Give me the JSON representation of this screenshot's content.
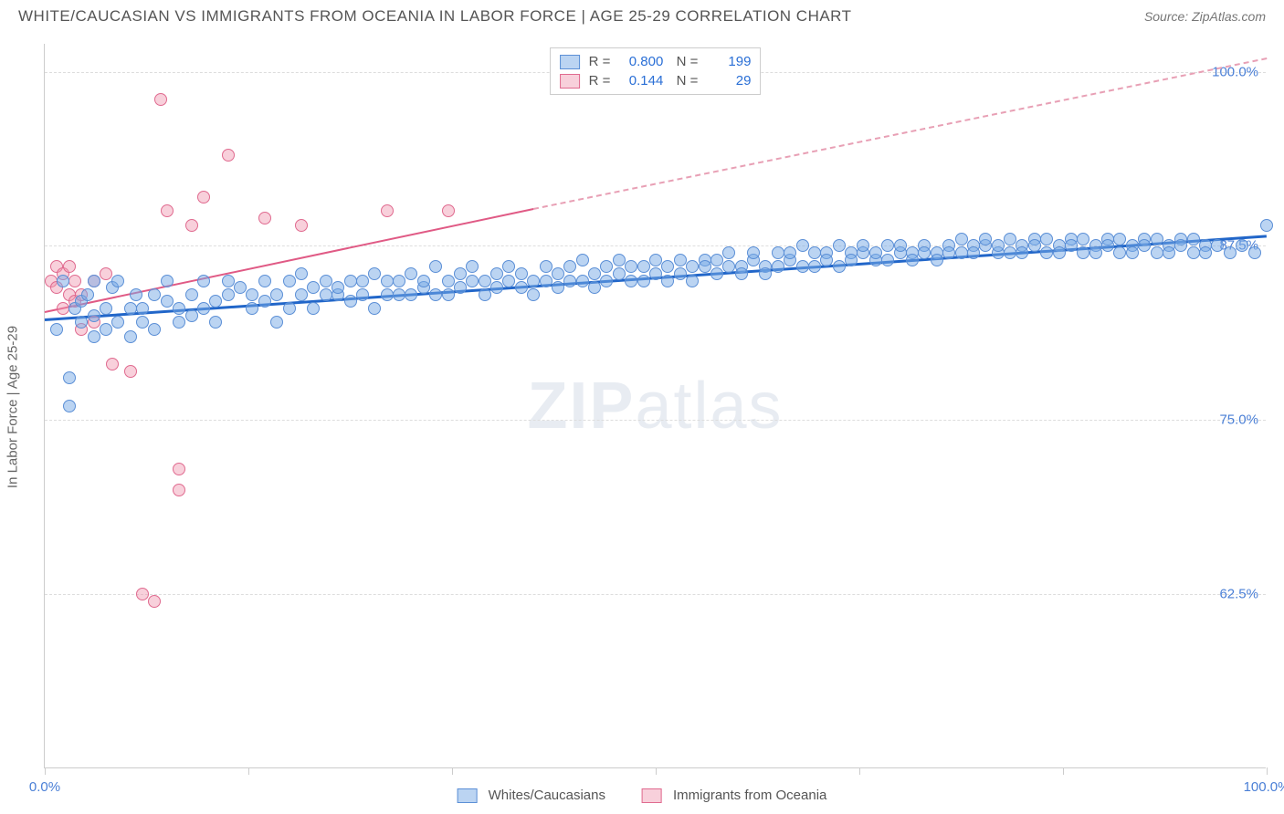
{
  "header": {
    "title": "WHITE/CAUCASIAN VS IMMIGRANTS FROM OCEANIA IN LABOR FORCE | AGE 25-29 CORRELATION CHART",
    "source": "Source: ZipAtlas.com"
  },
  "chart": {
    "type": "scatter",
    "ylabel": "In Labor Force | Age 25-29",
    "xlim": [
      0,
      100
    ],
    "ylim": [
      50,
      102
    ],
    "y_ticks": [
      62.5,
      75.0,
      87.5,
      100.0
    ],
    "y_tick_labels": [
      "62.5%",
      "75.0%",
      "87.5%",
      "100.0%"
    ],
    "x_ticks": [
      0,
      16.67,
      33.33,
      50,
      66.67,
      83.33,
      100
    ],
    "x_tick_labels_shown": {
      "0": "0.0%",
      "100": "100.0%"
    },
    "background_color": "#ffffff",
    "grid_color": "#dddddd",
    "series": {
      "blue": {
        "label": "Whites/Caucasians",
        "color_fill": "rgba(120,170,230,0.5)",
        "color_border": "#5b8fd6",
        "R": "0.800",
        "N": "199",
        "trend": {
          "x1": 0,
          "y1": 82.3,
          "x2": 100,
          "y2": 88.3,
          "color": "#2166c9",
          "width": 3
        },
        "points": [
          [
            1,
            81.5
          ],
          [
            1.5,
            85
          ],
          [
            2,
            78
          ],
          [
            2,
            76
          ],
          [
            2.5,
            83
          ],
          [
            3,
            83.5
          ],
          [
            3,
            82
          ],
          [
            3.5,
            84
          ],
          [
            4,
            82.5
          ],
          [
            4,
            81
          ],
          [
            4,
            85
          ],
          [
            5,
            83
          ],
          [
            5,
            81.5
          ],
          [
            5.5,
            84.5
          ],
          [
            6,
            82
          ],
          [
            6,
            85
          ],
          [
            7,
            83
          ],
          [
            7,
            81
          ],
          [
            7.5,
            84
          ],
          [
            8,
            83
          ],
          [
            8,
            82
          ],
          [
            9,
            84
          ],
          [
            9,
            81.5
          ],
          [
            10,
            83.5
          ],
          [
            10,
            85
          ],
          [
            11,
            83
          ],
          [
            11,
            82
          ],
          [
            12,
            84
          ],
          [
            12,
            82.5
          ],
          [
            13,
            83
          ],
          [
            13,
            85
          ],
          [
            14,
            83.5
          ],
          [
            14,
            82
          ],
          [
            15,
            84
          ],
          [
            15,
            85
          ],
          [
            16,
            84.5
          ],
          [
            17,
            83
          ],
          [
            17,
            84
          ],
          [
            18,
            85
          ],
          [
            18,
            83.5
          ],
          [
            19,
            84
          ],
          [
            19,
            82
          ],
          [
            20,
            85
          ],
          [
            20,
            83
          ],
          [
            21,
            84
          ],
          [
            21,
            85.5
          ],
          [
            22,
            84.5
          ],
          [
            22,
            83
          ],
          [
            23,
            84
          ],
          [
            23,
            85
          ],
          [
            24,
            84
          ],
          [
            24,
            84.5
          ],
          [
            25,
            85
          ],
          [
            25,
            83.5
          ],
          [
            26,
            84
          ],
          [
            26,
            85
          ],
          [
            27,
            83
          ],
          [
            27,
            85.5
          ],
          [
            28,
            84
          ],
          [
            28,
            85
          ],
          [
            29,
            85
          ],
          [
            29,
            84
          ],
          [
            30,
            85.5
          ],
          [
            30,
            84
          ],
          [
            31,
            84.5
          ],
          [
            31,
            85
          ],
          [
            32,
            84
          ],
          [
            32,
            86
          ],
          [
            33,
            85
          ],
          [
            33,
            84
          ],
          [
            34,
            85.5
          ],
          [
            34,
            84.5
          ],
          [
            35,
            85
          ],
          [
            35,
            86
          ],
          [
            36,
            85
          ],
          [
            36,
            84
          ],
          [
            37,
            85.5
          ],
          [
            37,
            84.5
          ],
          [
            38,
            85
          ],
          [
            38,
            86
          ],
          [
            39,
            84.5
          ],
          [
            39,
            85.5
          ],
          [
            40,
            85
          ],
          [
            40,
            84
          ],
          [
            41,
            86
          ],
          [
            41,
            85
          ],
          [
            42,
            85.5
          ],
          [
            42,
            84.5
          ],
          [
            43,
            85
          ],
          [
            43,
            86
          ],
          [
            44,
            85
          ],
          [
            44,
            86.5
          ],
          [
            45,
            85.5
          ],
          [
            45,
            84.5
          ],
          [
            46,
            86
          ],
          [
            46,
            85
          ],
          [
            47,
            85.5
          ],
          [
            47,
            86.5
          ],
          [
            48,
            85
          ],
          [
            48,
            86
          ],
          [
            49,
            86
          ],
          [
            49,
            85
          ],
          [
            50,
            86.5
          ],
          [
            50,
            85.5
          ],
          [
            51,
            86
          ],
          [
            51,
            85
          ],
          [
            52,
            86.5
          ],
          [
            52,
            85.5
          ],
          [
            53,
            86
          ],
          [
            53,
            85
          ],
          [
            54,
            86.5
          ],
          [
            54,
            86
          ],
          [
            55,
            85.5
          ],
          [
            55,
            86.5
          ],
          [
            56,
            86
          ],
          [
            56,
            87
          ],
          [
            57,
            86
          ],
          [
            57,
            85.5
          ],
          [
            58,
            86.5
          ],
          [
            58,
            87
          ],
          [
            59,
            86
          ],
          [
            59,
            85.5
          ],
          [
            60,
            87
          ],
          [
            60,
            86
          ],
          [
            61,
            86.5
          ],
          [
            61,
            87
          ],
          [
            62,
            86
          ],
          [
            62,
            87.5
          ],
          [
            63,
            87
          ],
          [
            63,
            86
          ],
          [
            64,
            87
          ],
          [
            64,
            86.5
          ],
          [
            65,
            86
          ],
          [
            65,
            87.5
          ],
          [
            66,
            87
          ],
          [
            66,
            86.5
          ],
          [
            67,
            87
          ],
          [
            67,
            87.5
          ],
          [
            68,
            86.5
          ],
          [
            68,
            87
          ],
          [
            69,
            87.5
          ],
          [
            69,
            86.5
          ],
          [
            70,
            87
          ],
          [
            70,
            87.5
          ],
          [
            71,
            87
          ],
          [
            71,
            86.5
          ],
          [
            72,
            87.5
          ],
          [
            72,
            87
          ],
          [
            73,
            87
          ],
          [
            73,
            86.5
          ],
          [
            74,
            87.5
          ],
          [
            74,
            87
          ],
          [
            75,
            87
          ],
          [
            75,
            88
          ],
          [
            76,
            87.5
          ],
          [
            76,
            87
          ],
          [
            77,
            87.5
          ],
          [
            77,
            88
          ],
          [
            78,
            87
          ],
          [
            78,
            87.5
          ],
          [
            79,
            88
          ],
          [
            79,
            87
          ],
          [
            80,
            87.5
          ],
          [
            80,
            87
          ],
          [
            81,
            88
          ],
          [
            81,
            87.5
          ],
          [
            82,
            87
          ],
          [
            82,
            88
          ],
          [
            83,
            87.5
          ],
          [
            83,
            87
          ],
          [
            84,
            88
          ],
          [
            84,
            87.5
          ],
          [
            85,
            87
          ],
          [
            85,
            88
          ],
          [
            86,
            87.5
          ],
          [
            86,
            87
          ],
          [
            87,
            88
          ],
          [
            87,
            87.5
          ],
          [
            88,
            87
          ],
          [
            88,
            88
          ],
          [
            89,
            87.5
          ],
          [
            89,
            87
          ],
          [
            90,
            88
          ],
          [
            90,
            87.5
          ],
          [
            91,
            87
          ],
          [
            91,
            88
          ],
          [
            92,
            87.5
          ],
          [
            92,
            87
          ],
          [
            93,
            88
          ],
          [
            93,
            87.5
          ],
          [
            94,
            87
          ],
          [
            94,
            88
          ],
          [
            95,
            87.5
          ],
          [
            95,
            87
          ],
          [
            96,
            87.5
          ],
          [
            97,
            87
          ],
          [
            98,
            87.5
          ],
          [
            99,
            87
          ],
          [
            100,
            89
          ]
        ]
      },
      "pink": {
        "label": "Immigrants from Oceania",
        "color_fill": "rgba(240,150,175,0.45)",
        "color_border": "#e06a8f",
        "R": "0.144",
        "N": "29",
        "trend_solid": {
          "x1": 0,
          "y1": 82.8,
          "x2": 40,
          "y2": 90.2,
          "color": "#e05a85",
          "width": 2.5
        },
        "trend_dash": {
          "x1": 40,
          "y1": 90.2,
          "x2": 100,
          "y2": 101,
          "color": "#e8a0b5",
          "width": 2
        },
        "points": [
          [
            0.5,
            85
          ],
          [
            1,
            86
          ],
          [
            1,
            84.5
          ],
          [
            1.5,
            85.5
          ],
          [
            1.5,
            83
          ],
          [
            2,
            84
          ],
          [
            2,
            86
          ],
          [
            2.5,
            83.5
          ],
          [
            2.5,
            85
          ],
          [
            3,
            81.5
          ],
          [
            3,
            84
          ],
          [
            4,
            82
          ],
          [
            4,
            85
          ],
          [
            5,
            85.5
          ],
          [
            5.5,
            79
          ],
          [
            7,
            78.5
          ],
          [
            8,
            62.5
          ],
          [
            9,
            62
          ],
          [
            9.5,
            98
          ],
          [
            10,
            90
          ],
          [
            11,
            71.5
          ],
          [
            11,
            70
          ],
          [
            12,
            89
          ],
          [
            13,
            91
          ],
          [
            15,
            94
          ],
          [
            18,
            89.5
          ],
          [
            21,
            89
          ],
          [
            28,
            90
          ],
          [
            33,
            90
          ]
        ]
      }
    },
    "watermark": "ZIPatlas"
  },
  "bottom_legend": {
    "item1": "Whites/Caucasians",
    "item2": "Immigrants from Oceania"
  }
}
